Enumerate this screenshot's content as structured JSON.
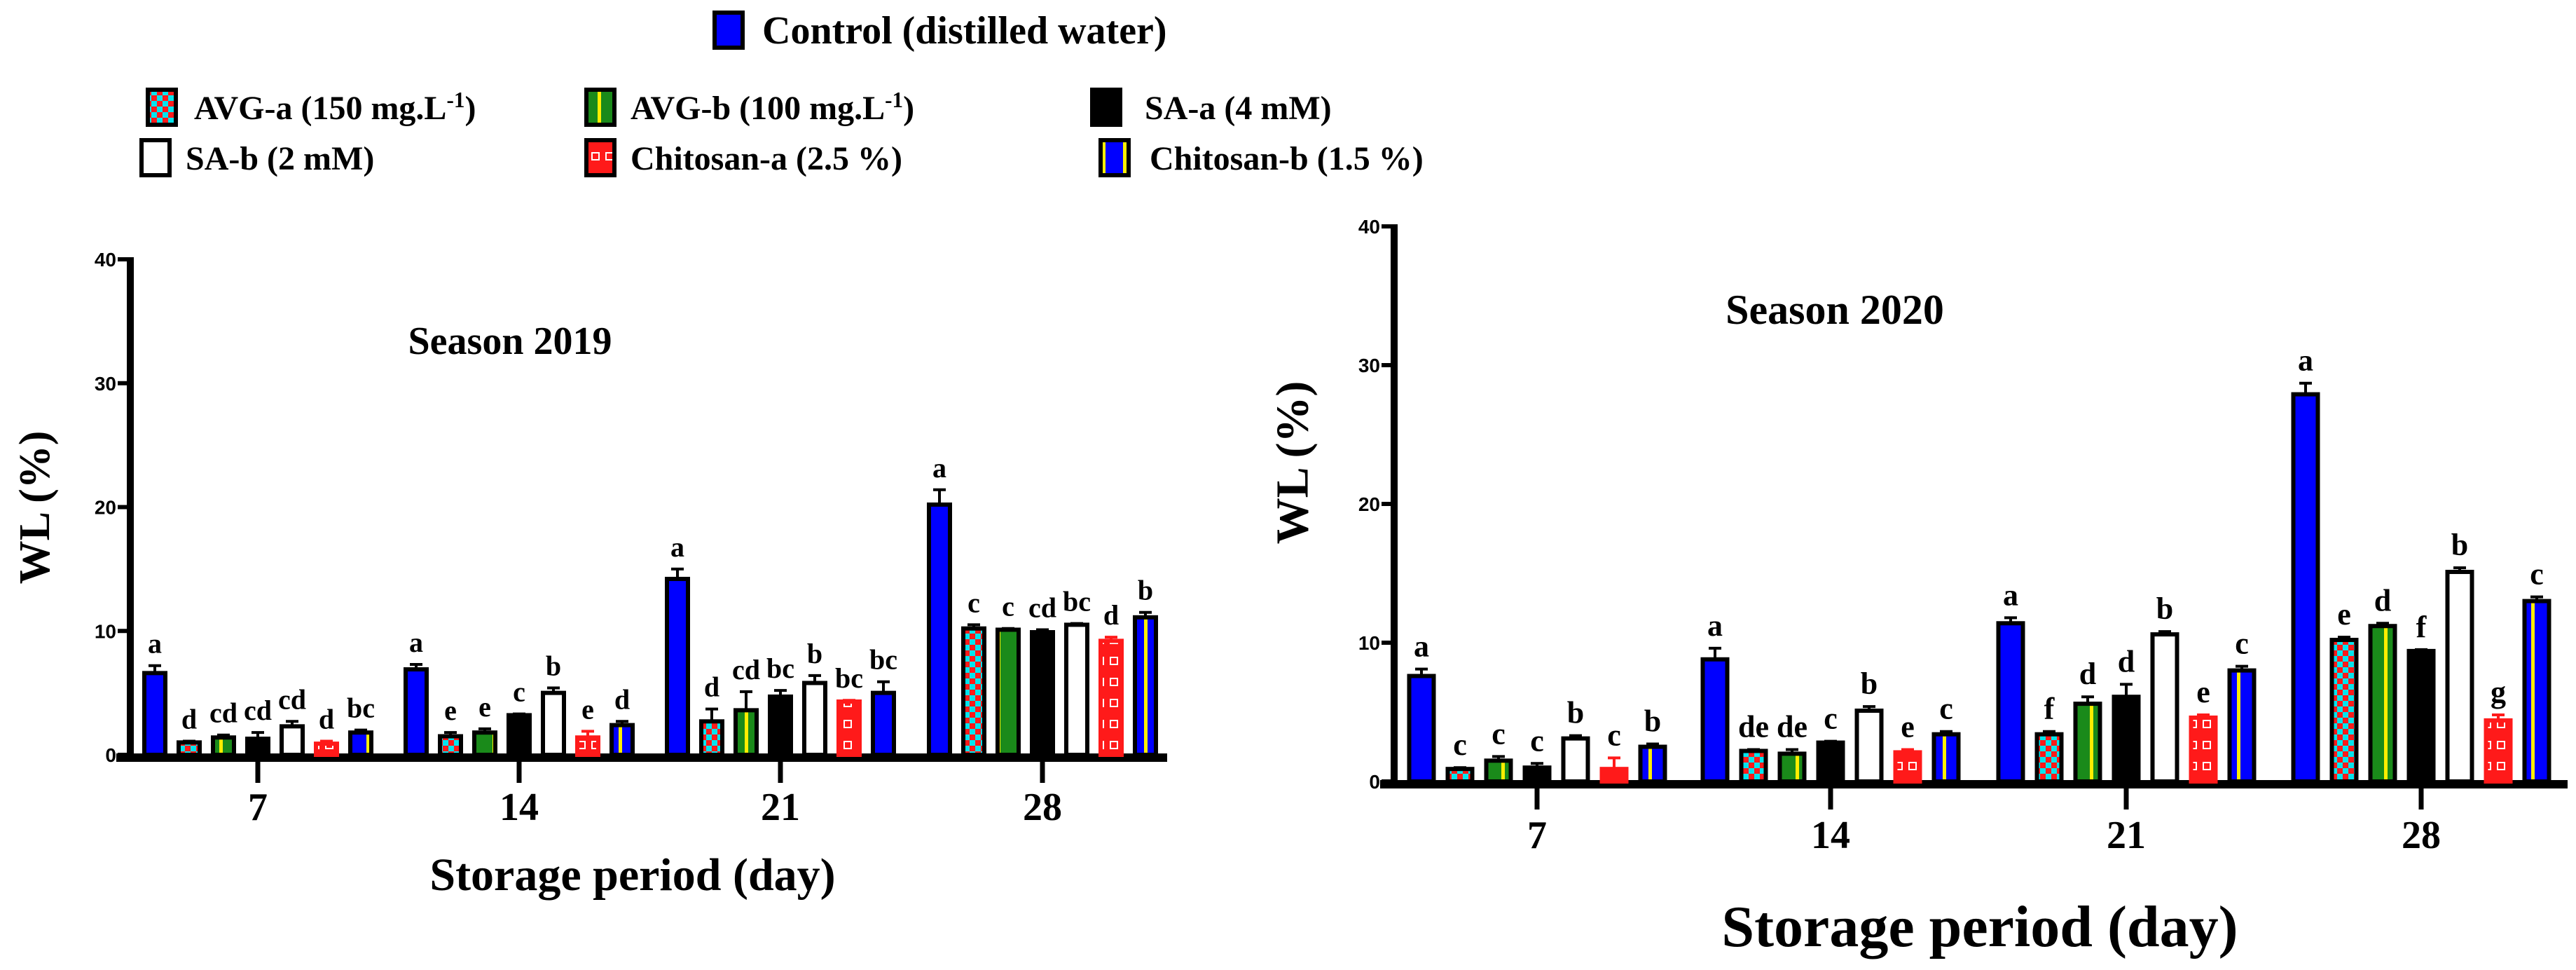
{
  "legend": {
    "items": [
      {
        "label": "Control (distilled water)",
        "pattern": "solid-blue"
      },
      {
        "label": "AVG-a (150 mg.L",
        "sup": "-1",
        "tail": ")",
        "pattern": "cyan-red-checker"
      },
      {
        "label": "AVG-b (100 mg.L",
        "sup": "-1",
        "tail": ")",
        "pattern": "green-yellow-stripe"
      },
      {
        "label": "SA-a (4 mM)",
        "pattern": "solid-black"
      },
      {
        "label": "SA-b (2 mM)",
        "pattern": "white"
      },
      {
        "label": "Chitosan-a (2.5 %)",
        "pattern": "red-white-brick"
      },
      {
        "label": "Chitosan-b (1.5 %)",
        "pattern": "blue-yellow-stripe"
      }
    ]
  },
  "colors": {
    "control": "#0000ff",
    "cyan": "#00e5ee",
    "red": "#ff1a1a",
    "green": "#1a8a1a",
    "yellow": "#ffee00",
    "black": "#000000"
  },
  "chart_data": [
    {
      "type": "bar",
      "title": "Season 2019",
      "xlabel": "Storage period (day)",
      "ylabel": "WL (%)",
      "ylim": [
        0,
        40
      ],
      "yticks": [
        "0",
        "10",
        "20",
        "30",
        "40"
      ],
      "categories": [
        "7",
        "14",
        "21",
        "28"
      ],
      "series": [
        {
          "name": "Control (distilled water)",
          "values": [
            6.6,
            6.9,
            14.2,
            20.2
          ],
          "errors": [
            0.6,
            0.4,
            0.8,
            1.2
          ],
          "letters": [
            "a",
            "a",
            "a",
            "a"
          ]
        },
        {
          "name": "AVG-a (150 mg.L-1)",
          "values": [
            1.0,
            1.5,
            2.7,
            10.2
          ],
          "errors": [
            0.1,
            0.3,
            1.0,
            0.3
          ],
          "letters": [
            "d",
            "e",
            "d",
            "c"
          ]
        },
        {
          "name": "AVG-b (100 mg.L-1)",
          "values": [
            1.4,
            1.8,
            3.6,
            10.1
          ],
          "errors": [
            0.2,
            0.3,
            1.5,
            0.1
          ],
          "letters": [
            "cd",
            "e",
            "cd",
            "c"
          ]
        },
        {
          "name": "SA-a (4 mM)",
          "values": [
            1.3,
            3.2,
            4.7,
            9.9
          ],
          "errors": [
            0.5,
            0.1,
            0.5,
            0.2
          ],
          "letters": [
            "cd",
            "c",
            "bc",
            "cd"
          ]
        },
        {
          "name": "SA-b (2 mM)",
          "values": [
            2.3,
            5.0,
            5.8,
            10.5
          ],
          "errors": [
            0.4,
            0.4,
            0.6,
            0.1
          ],
          "letters": [
            "cd",
            "b",
            "b",
            "bc"
          ]
        },
        {
          "name": "Chitosan-a (2.5 %)",
          "values": [
            0.9,
            1.4,
            4.3,
            9.2
          ],
          "errors": [
            0.2,
            0.5,
            0.1,
            0.3
          ],
          "letters": [
            "d",
            "e",
            "bc",
            "d"
          ]
        },
        {
          "name": "Chitosan-b (1.5 %)",
          "values": [
            1.8,
            2.4,
            5.0,
            11.1
          ],
          "errors": [
            0.2,
            0.3,
            0.9,
            0.4
          ],
          "letters": [
            "bc",
            "d",
            "bc",
            "b"
          ]
        }
      ]
    },
    {
      "type": "bar",
      "title": "Season 2020",
      "xlabel": "Storage period (day)",
      "ylabel": "WL (%)",
      "ylim": [
        0,
        40
      ],
      "yticks": [
        "0",
        "10",
        "20",
        "30",
        "40"
      ],
      "categories": [
        "7",
        "14",
        "21",
        "28"
      ],
      "series": [
        {
          "name": "Control (distilled water)",
          "values": [
            7.6,
            8.8,
            11.4,
            27.9
          ],
          "errors": [
            0.5,
            0.8,
            0.4,
            0.8
          ],
          "letters": [
            "a",
            "a",
            "a",
            "a"
          ]
        },
        {
          "name": "AVG-a (150 mg.L-1)",
          "values": [
            0.9,
            2.2,
            3.4,
            10.2
          ],
          "errors": [
            0.1,
            0.1,
            0.2,
            0.2
          ],
          "letters": [
            "c",
            "de",
            "f",
            "e"
          ]
        },
        {
          "name": "AVG-b (100 mg.L-1)",
          "values": [
            1.5,
            2.0,
            5.6,
            11.2
          ],
          "errors": [
            0.3,
            0.3,
            0.5,
            0.2
          ],
          "letters": [
            "c",
            "de",
            "d",
            "d"
          ]
        },
        {
          "name": "SA-a (4 mM)",
          "values": [
            1.0,
            2.8,
            6.1,
            9.4
          ],
          "errors": [
            0.3,
            0.1,
            0.9,
            0.1
          ],
          "letters": [
            "c",
            "c",
            "d",
            "f"
          ]
        },
        {
          "name": "SA-b (2 mM)",
          "values": [
            3.1,
            5.1,
            10.6,
            15.1
          ],
          "errors": [
            0.2,
            0.3,
            0.2,
            0.3
          ],
          "letters": [
            "b",
            "b",
            "b",
            "b"
          ]
        },
        {
          "name": "Chitosan-a (2.5 %)",
          "values": [
            0.9,
            2.1,
            4.6,
            4.4
          ],
          "errors": [
            0.8,
            0.2,
            0.2,
            0.4
          ],
          "letters": [
            "c",
            "e",
            "e",
            "g"
          ]
        },
        {
          "name": "Chitosan-b (1.5 %)",
          "values": [
            2.5,
            3.4,
            8.0,
            13.0
          ],
          "errors": [
            0.2,
            0.2,
            0.3,
            0.3
          ],
          "letters": [
            "b",
            "c",
            "c",
            "c"
          ]
        }
      ]
    }
  ]
}
